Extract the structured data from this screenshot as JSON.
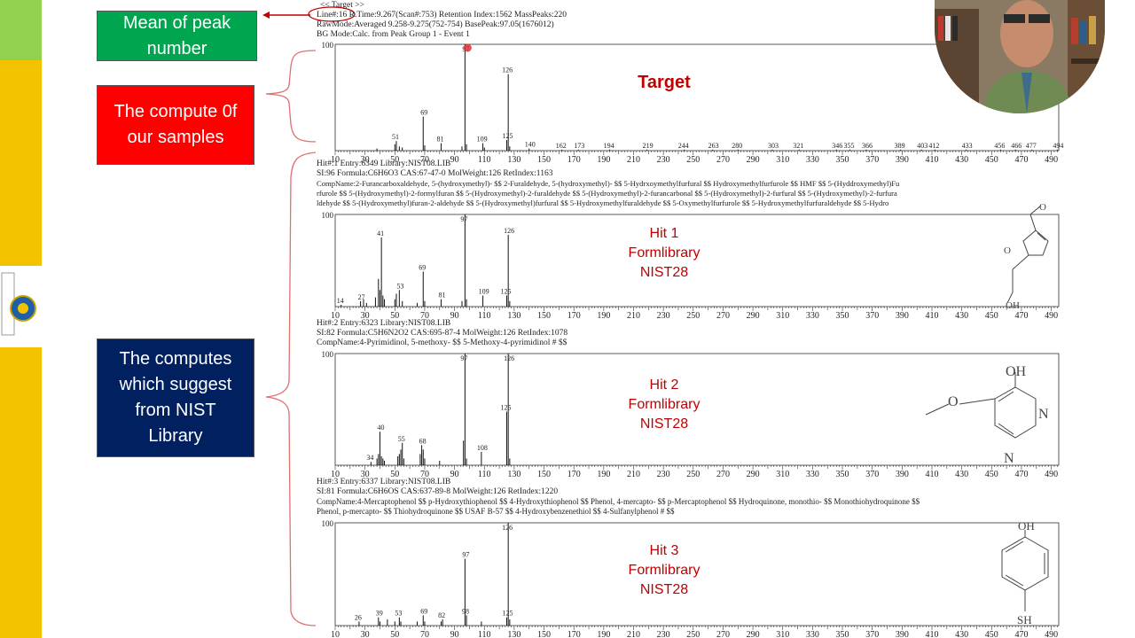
{
  "slide": {
    "left_boxes": [
      {
        "text": "Mean of  peak\nnumber",
        "color": "#00a550"
      },
      {
        "text": "The compute 0f\nour samples",
        "color": "#ff0000"
      },
      {
        "text": "The computes\nwhich suggest\nfrom NIST\nLibrary",
        "color": "#002060"
      }
    ],
    "header_lines": [
      "<< Target >>",
      "Line#:16  R.Time:9.267(Scan#:753) Retention Index:1562 MassPeaks:220",
      "RawMode:Averaged 9.258-9.275(752-754) BasePeak:97.05(1676012)",
      "BG Mode:Calc. from Peak  Group 1 - Event 1"
    ],
    "hit1_lines": [
      "Hit#:1  Entry:6349  Library:NIST08.LIB",
      "SI:96  Formula:C6H6O3  CAS:67-47-0  MolWeight:126  RetIndex:1163",
      "CompName:2-Furancarboxaldehyde, 5-(hydroxymethyl)- $$ 2-Furaldehyde, 5-(hydroxymethyl)- $$ 5-Hydrxoymethylfurfural $$ Hydroxymethylfurfurole $$ HMF $$ 5-(Hyddroxymethyl)Fu",
      "rfurole $$ 5-(Hydroxymethyl)-2-formylfuran $$ 5-(Hydroxymethyl)-2-furaldehyde $$ 5-(Hydroxymethyl)-2-furancarbonal $$ 5-(Hydroxymethyl)-2-furfural $$ 5-(Hydroxymethyl)-2-furfura",
      "ldehyde $$ 5-(Hydroxymethyl)furan-2-aldehyde $$ 5-(Hydroxymethyl)furfural $$ 5-Hydroxymethylfuraldehyde $$ 5-Oxymethylfurfurole $$ 5-Hydroxymethylfurfuraldehyde $$ 5-Hydro"
    ],
    "hit2_lines": [
      "Hit#:2  Entry:6323  Library:NIST08.LIB",
      "SI:82  Formula:C5H6N2O2  CAS:695-87-4  MolWeight:126  RetIndex:1078",
      "CompName:4-Pyrimidinol, 5-methoxy- $$ 5-Methoxy-4-pyrimidinol # $$"
    ],
    "hit3_lines": [
      "Hit#:3  Entry:6337  Library:NIST08.LIB",
      "SI:81  Formula:C6H6OS  CAS:637-89-8  MolWeight:126  RetIndex:1220",
      "CompName:4-Mercaptophenol $$ p-Hydroxythiophenol $$ 4-Hydroxythiophenol $$ Phenol, 4-mercapto- $$ p-Mercaptophenol $$ Hydroquinone, monothio- $$ Monothiohydroquinone $$",
      "Phenol, p-mercapto- $$ Thiohydroquinone $$ USAF B-57 $$ 4-Hydroxybenzenethiol $$ 4-Sulfanylphenol # $$"
    ],
    "annotations": {
      "target": "Target",
      "hit1": "Hit 1\nFormlibrary\nNIST28",
      "hit2": "Hit 2\nFormlibrary\nNIST28",
      "hit3": "Hit 3\nFormlibrary\nNIST28"
    },
    "structure_labels": {
      "hit1": [
        "O",
        "OH",
        "O"
      ],
      "hit2": [
        "OH",
        "O",
        "N",
        "N"
      ],
      "hit3": [
        "OH",
        "SH"
      ]
    },
    "colors": {
      "annotation_red": "#c00000",
      "bar_yellow": "#f3c300",
      "bar_green": "#92d050"
    }
  },
  "chart_data": [
    {
      "type": "bar",
      "name": "target-spectrum",
      "title": "",
      "ylim": [
        0,
        100
      ],
      "xlim": [
        10,
        495
      ],
      "y_top_label": "100",
      "ticks": [
        10,
        30,
        50,
        70,
        90,
        110,
        130,
        150,
        170,
        190,
        210,
        230,
        250,
        270,
        290,
        310,
        330,
        350,
        370,
        390,
        410,
        430,
        450,
        470,
        490
      ],
      "peaks": [
        [
          38,
          2
        ],
        [
          50,
          6
        ],
        [
          51,
          9
        ],
        [
          53,
          4
        ],
        [
          55,
          3
        ],
        [
          69,
          32
        ],
        [
          70,
          5
        ],
        [
          81,
          7
        ],
        [
          95,
          4
        ],
        [
          97,
          100
        ],
        [
          98,
          6
        ],
        [
          109,
          7
        ],
        [
          110,
          3
        ],
        [
          125,
          10
        ],
        [
          126,
          72
        ],
        [
          127,
          4
        ],
        [
          140,
          2
        ],
        [
          162,
          1
        ],
        [
          173,
          1
        ],
        [
          194,
          1
        ],
        [
          219,
          1
        ],
        [
          244,
          1
        ],
        [
          263,
          1
        ],
        [
          280,
          1
        ],
        [
          303,
          1
        ],
        [
          321,
          1
        ],
        [
          346,
          1
        ],
        [
          355,
          1
        ],
        [
          366,
          1
        ],
        [
          389,
          1
        ],
        [
          403,
          1
        ],
        [
          412,
          1
        ],
        [
          433,
          1
        ],
        [
          456,
          1
        ],
        [
          466,
          1
        ],
        [
          477,
          1
        ],
        [
          494,
          1
        ]
      ],
      "peak_labels": [
        [
          51,
          "51"
        ],
        [
          69,
          "69"
        ],
        [
          81,
          "81"
        ],
        [
          97,
          "97"
        ],
        [
          109,
          "109"
        ],
        [
          125,
          "125"
        ],
        [
          126,
          "126"
        ],
        [
          140,
          "140"
        ],
        [
          162,
          "162"
        ],
        [
          173,
          "173"
        ],
        [
          194,
          "194"
        ],
        [
          219,
          "219"
        ],
        [
          244,
          "244"
        ],
        [
          263,
          "263"
        ],
        [
          280,
          "280"
        ],
        [
          303,
          "303"
        ],
        [
          321,
          "321"
        ],
        [
          346,
          "346"
        ],
        [
          355,
          "355"
        ],
        [
          366,
          "366"
        ],
        [
          389,
          "389"
        ],
        [
          403,
          "403"
        ],
        [
          412,
          "412"
        ],
        [
          433,
          "433"
        ],
        [
          456,
          "456"
        ],
        [
          466,
          "466"
        ],
        [
          477,
          "477"
        ],
        [
          494,
          "494"
        ]
      ]
    },
    {
      "type": "bar",
      "name": "hit1-spectrum",
      "title": "",
      "ylim": [
        0,
        100
      ],
      "xlim": [
        10,
        495
      ],
      "y_top_label": "100",
      "ticks": [
        10,
        30,
        50,
        70,
        90,
        110,
        130,
        150,
        170,
        190,
        210,
        230,
        250,
        270,
        290,
        310,
        330,
        350,
        370,
        390,
        410,
        430,
        450,
        470,
        490
      ],
      "peaks": [
        [
          14,
          2
        ],
        [
          27,
          6
        ],
        [
          29,
          8
        ],
        [
          31,
          4
        ],
        [
          37,
          10
        ],
        [
          39,
          30
        ],
        [
          40,
          18
        ],
        [
          41,
          75
        ],
        [
          42,
          12
        ],
        [
          43,
          8
        ],
        [
          50,
          8
        ],
        [
          51,
          14
        ],
        [
          53,
          18
        ],
        [
          55,
          6
        ],
        [
          65,
          4
        ],
        [
          69,
          38
        ],
        [
          70,
          6
        ],
        [
          81,
          8
        ],
        [
          95,
          6
        ],
        [
          97,
          100
        ],
        [
          98,
          8
        ],
        [
          109,
          12
        ],
        [
          125,
          12
        ],
        [
          126,
          78
        ],
        [
          127,
          6
        ]
      ],
      "peak_labels": [
        [
          14,
          "14"
        ],
        [
          27,
          "27"
        ],
        [
          41,
          "41"
        ],
        [
          53,
          "53"
        ],
        [
          69,
          "69"
        ],
        [
          81,
          "81"
        ],
        [
          97,
          "97"
        ],
        [
          109,
          "109"
        ],
        [
          125,
          "125"
        ],
        [
          126,
          "126"
        ]
      ]
    },
    {
      "type": "bar",
      "name": "hit2-spectrum",
      "title": "",
      "ylim": [
        0,
        100
      ],
      "xlim": [
        10,
        495
      ],
      "y_top_label": "100",
      "ticks": [
        10,
        30,
        50,
        70,
        90,
        110,
        130,
        150,
        170,
        190,
        210,
        230,
        250,
        270,
        290,
        310,
        330,
        350,
        370,
        390,
        410,
        430,
        450,
        470,
        490
      ],
      "peaks": [
        [
          34,
          3
        ],
        [
          38,
          6
        ],
        [
          39,
          10
        ],
        [
          40,
          30
        ],
        [
          41,
          8
        ],
        [
          42,
          6
        ],
        [
          43,
          4
        ],
        [
          52,
          8
        ],
        [
          53,
          10
        ],
        [
          54,
          14
        ],
        [
          55,
          20
        ],
        [
          56,
          6
        ],
        [
          67,
          10
        ],
        [
          68,
          18
        ],
        [
          69,
          14
        ],
        [
          70,
          6
        ],
        [
          80,
          4
        ],
        [
          96,
          22
        ],
        [
          97,
          100
        ],
        [
          98,
          6
        ],
        [
          108,
          12
        ],
        [
          125,
          48
        ],
        [
          126,
          100
        ],
        [
          127,
          6
        ]
      ],
      "peak_labels": [
        [
          34,
          "34"
        ],
        [
          40,
          "40"
        ],
        [
          55,
          "55"
        ],
        [
          68,
          "68"
        ],
        [
          97,
          "97"
        ],
        [
          108,
          "108"
        ],
        [
          125,
          "125"
        ],
        [
          126,
          "126"
        ]
      ]
    },
    {
      "type": "bar",
      "name": "hit3-spectrum",
      "title": "",
      "ylim": [
        0,
        100
      ],
      "xlim": [
        10,
        495
      ],
      "y_top_label": "100",
      "ticks": [
        10,
        30,
        50,
        70,
        90,
        110,
        130,
        150,
        170,
        190,
        210,
        230,
        250,
        270,
        290,
        310,
        330,
        350,
        370,
        390,
        410,
        430,
        450,
        470,
        490
      ],
      "peaks": [
        [
          26,
          4
        ],
        [
          39,
          8
        ],
        [
          40,
          4
        ],
        [
          45,
          6
        ],
        [
          50,
          4
        ],
        [
          53,
          8
        ],
        [
          54,
          4
        ],
        [
          65,
          4
        ],
        [
          69,
          10
        ],
        [
          70,
          4
        ],
        [
          81,
          4
        ],
        [
          82,
          6
        ],
        [
          97,
          65
        ],
        [
          98,
          10
        ],
        [
          108,
          4
        ],
        [
          125,
          8
        ],
        [
          126,
          100
        ],
        [
          127,
          6
        ]
      ],
      "peak_labels": [
        [
          26,
          "26"
        ],
        [
          39,
          "39"
        ],
        [
          53,
          "53"
        ],
        [
          69,
          "69"
        ],
        [
          82,
          "82"
        ],
        [
          97,
          "97"
        ],
        [
          98,
          "98"
        ],
        [
          125,
          "125"
        ],
        [
          126,
          "126"
        ]
      ]
    }
  ]
}
